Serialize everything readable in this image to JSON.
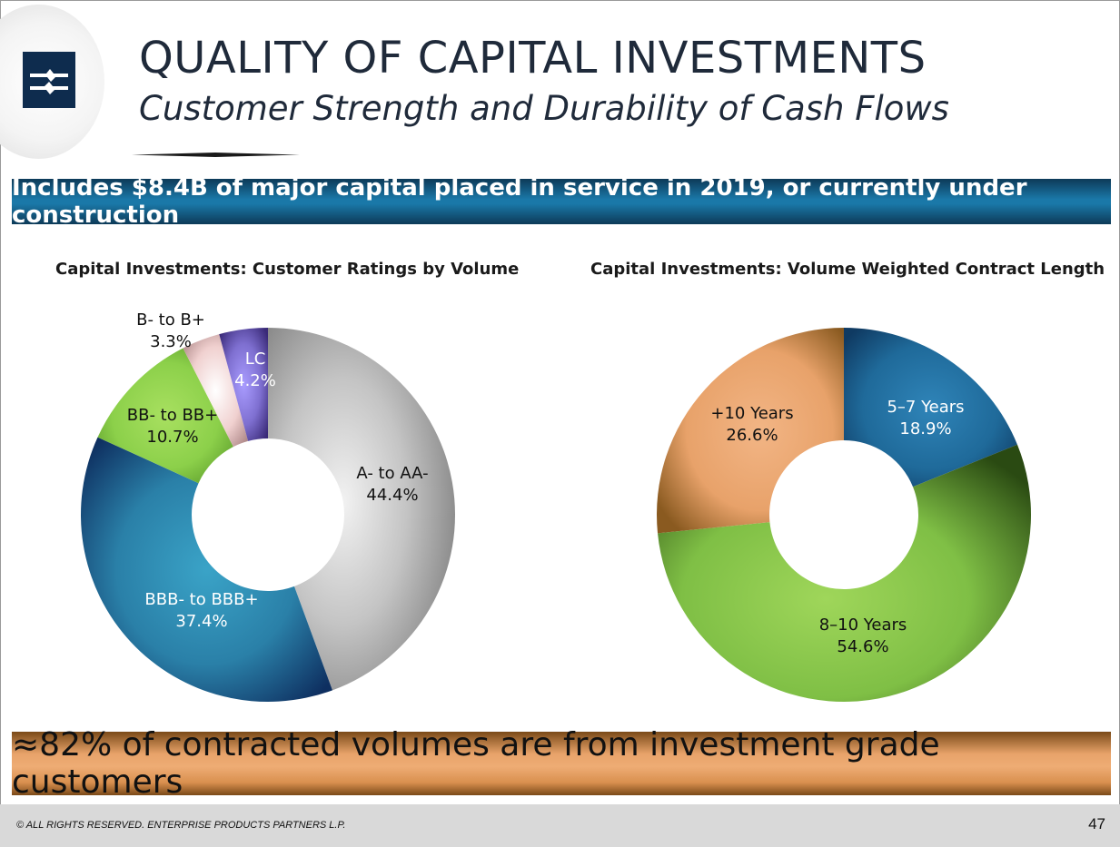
{
  "header": {
    "title": "QUALITY OF CAPITAL INVESTMENTS",
    "subtitle": "Customer Strength and Durability of Cash Flows"
  },
  "banner_top": "Includes $8.4B of major capital placed in service in 2019, or currently under construction",
  "banner_bottom": "≈82% of contracted volumes are from investment grade customers",
  "footer": {
    "copyright": "© ALL RIGHTS RESERVED. ENTERPRISE PRODUCTS PARTNERS L.P.",
    "page_number": "47"
  },
  "chart_data": [
    {
      "type": "pie",
      "donut": true,
      "title": "Capital Investments:  Customer Ratings by Volume",
      "slices": [
        {
          "name": "A- to AA-",
          "value": 44.4,
          "label": "44.4%",
          "color": "#b8b8b8"
        },
        {
          "name": "BBB- to BBB+",
          "value": 37.4,
          "label": "37.4%",
          "color": "#2a7fa6"
        },
        {
          "name": "BB- to BB+",
          "value": 10.7,
          "label": "10.7%",
          "color": "#8fcf4a"
        },
        {
          "name": "B- to B+",
          "value": 3.3,
          "label": "3.3%",
          "color": "#f2d4d2"
        },
        {
          "name": "LC",
          "value": 4.2,
          "label": "4.2%",
          "color": "#8a7ad0"
        }
      ]
    },
    {
      "type": "pie",
      "donut": true,
      "title": "Capital Investments:  Volume Weighted Contract Length",
      "slices": [
        {
          "name": "5–7 Years",
          "value": 18.9,
          "label": "18.9%",
          "color": "#1f6a9a"
        },
        {
          "name": "8–10 Years",
          "value": 54.6,
          "label": "54.6%",
          "color": "#7fbf45"
        },
        {
          "name": "+10 Years",
          "value": 26.6,
          "label": "26.6%",
          "color": "#e8a26a"
        }
      ]
    }
  ]
}
